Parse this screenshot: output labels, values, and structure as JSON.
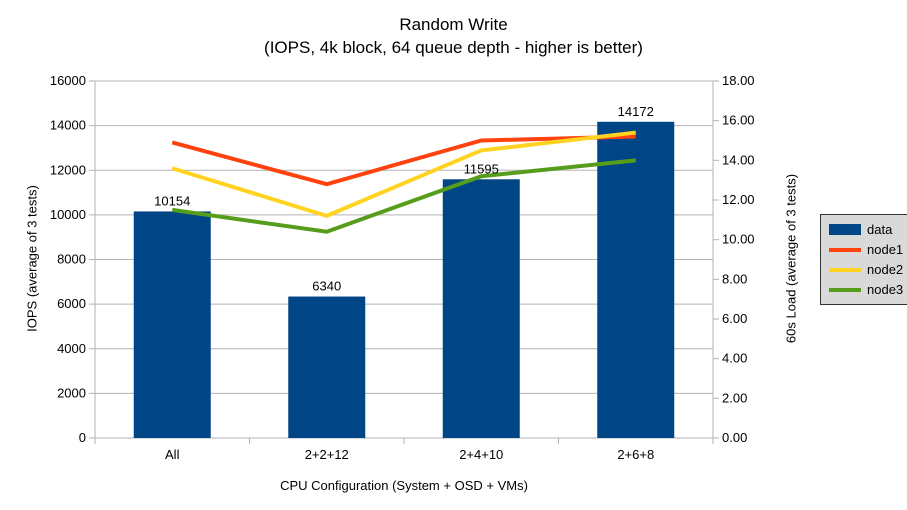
{
  "title": {
    "line1": "Random Write",
    "line2": "(IOPS, 4k block, 64 queue depth - higher is better)"
  },
  "chart_data": {
    "type": "bar-line-combo",
    "categories": [
      "All",
      "2+2+12",
      "2+4+10",
      "2+6+8"
    ],
    "bar_series": {
      "name": "data",
      "axis": "left",
      "color": "#004586",
      "values": [
        10154,
        6340,
        11595,
        14172
      ],
      "labels": [
        "10154",
        "6340",
        "11595",
        "14172"
      ]
    },
    "line_series": [
      {
        "name": "node1",
        "axis": "right",
        "color": "#ff420e",
        "values": [
          14.9,
          12.8,
          15.0,
          15.2
        ]
      },
      {
        "name": "node2",
        "axis": "right",
        "color": "#ffd320",
        "values": [
          13.6,
          11.2,
          14.5,
          15.4
        ]
      },
      {
        "name": "node3",
        "axis": "right",
        "color": "#579d1c",
        "values": [
          11.5,
          10.4,
          13.2,
          14.0
        ]
      }
    ],
    "left_axis": {
      "label": "IOPS (average of 3 tests)",
      "min": 0,
      "max": 16000,
      "step": 2000,
      "ticks": [
        "0",
        "2000",
        "4000",
        "6000",
        "8000",
        "10000",
        "12000",
        "14000",
        "16000"
      ]
    },
    "right_axis": {
      "label": "60s Load (average of 3 tests)",
      "min": 0,
      "max": 18,
      "step": 2,
      "ticks": [
        "0.00",
        "2.00",
        "4.00",
        "6.00",
        "8.00",
        "10.00",
        "12.00",
        "14.00",
        "16.00",
        "18.00"
      ]
    },
    "x_axis": {
      "label": "CPU Configuration (System + OSD + VMs)"
    },
    "legend": {
      "position": "right",
      "entries": [
        {
          "label": "data",
          "type": "bar",
          "color": "#004586"
        },
        {
          "label": "node1",
          "type": "line",
          "color": "#ff420e"
        },
        {
          "label": "node2",
          "type": "line",
          "color": "#ffd320"
        },
        {
          "label": "node3",
          "type": "line",
          "color": "#579d1c"
        }
      ]
    },
    "grid": "horizontal",
    "colors": {
      "background": "#ffffff",
      "gridline": "#b3b3b3",
      "axis": "#b3b3b3",
      "text": "#000000",
      "legend_bg": "#d9d9d9",
      "legend_border": "#333333"
    }
  }
}
